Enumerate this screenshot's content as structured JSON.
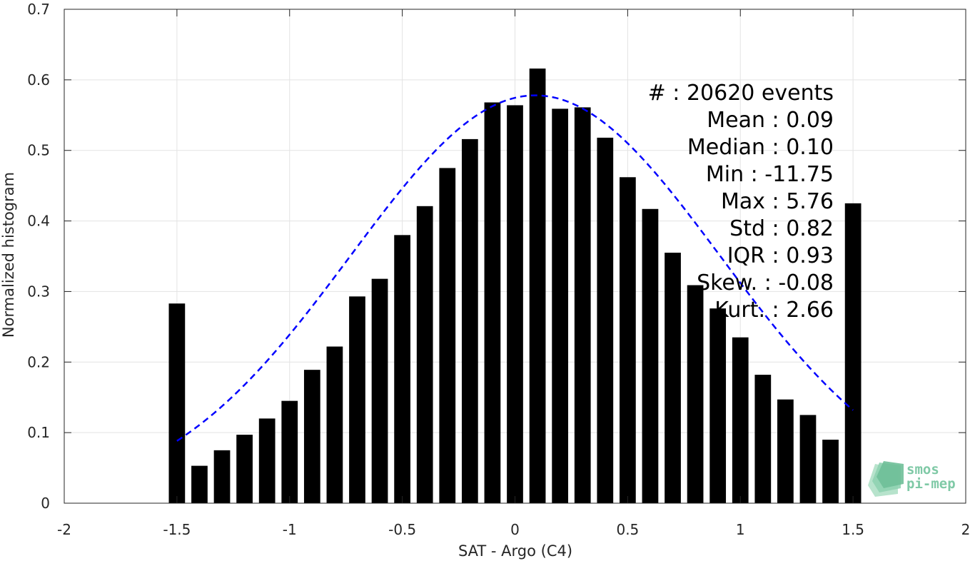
{
  "chart_data": {
    "type": "bar",
    "xlabel": "SAT - Argo (C4)",
    "ylabel": "Normalized histogram",
    "xlim": [
      -2,
      2
    ],
    "ylim": [
      0,
      0.7
    ],
    "xticks": [
      -2,
      -1.5,
      -1,
      -0.5,
      0,
      0.5,
      1,
      1.5,
      2
    ],
    "xtick_labels": [
      "-2",
      "-1.5",
      "-1",
      "-0.5",
      "0",
      "0.5",
      "1",
      "1.5",
      "2"
    ],
    "yticks": [
      0,
      0.1,
      0.2,
      0.3,
      0.4,
      0.5,
      0.6,
      0.7
    ],
    "ytick_labels": [
      "0",
      "0.1",
      "0.2",
      "0.3",
      "0.4",
      "0.5",
      "0.6",
      "0.7"
    ],
    "grid": true,
    "bar_color": "#000000",
    "fit_color": "#0000ff",
    "bin_width": 0.1,
    "x": [
      -1.5,
      -1.4,
      -1.3,
      -1.2,
      -1.1,
      -1.0,
      -0.9,
      -0.8,
      -0.7,
      -0.6,
      -0.5,
      -0.4,
      -0.3,
      -0.2,
      -0.1,
      0.0,
      0.1,
      0.2,
      0.3,
      0.4,
      0.5,
      0.6,
      0.7,
      0.8,
      0.9,
      1.0,
      1.1,
      1.2,
      1.3,
      1.4,
      1.5
    ],
    "values": [
      0.283,
      0.053,
      0.075,
      0.097,
      0.12,
      0.145,
      0.189,
      0.222,
      0.293,
      0.318,
      0.38,
      0.421,
      0.475,
      0.516,
      0.568,
      0.564,
      0.616,
      0.559,
      0.561,
      0.518,
      0.462,
      0.417,
      0.355,
      0.309,
      0.276,
      0.235,
      0.182,
      0.147,
      0.125,
      0.09,
      0.425
    ],
    "fit": {
      "style": "dashed",
      "mean": 0.09,
      "std": 0.82,
      "peak": 0.578,
      "x_range": [
        -1.5,
        1.5
      ]
    }
  },
  "stats": [
    "#  : 20620 events",
    "Mean : 0.09",
    "Median : 0.10",
    "Min : -11.75",
    "Max : 5.76",
    "Std : 0.82",
    "IQR : 0.93",
    "Skew. : -0.08",
    "Kurt. : 2.66"
  ],
  "logo": {
    "line1": "smos",
    "line2": "pi-mep",
    "color": "#7fc9a6"
  }
}
